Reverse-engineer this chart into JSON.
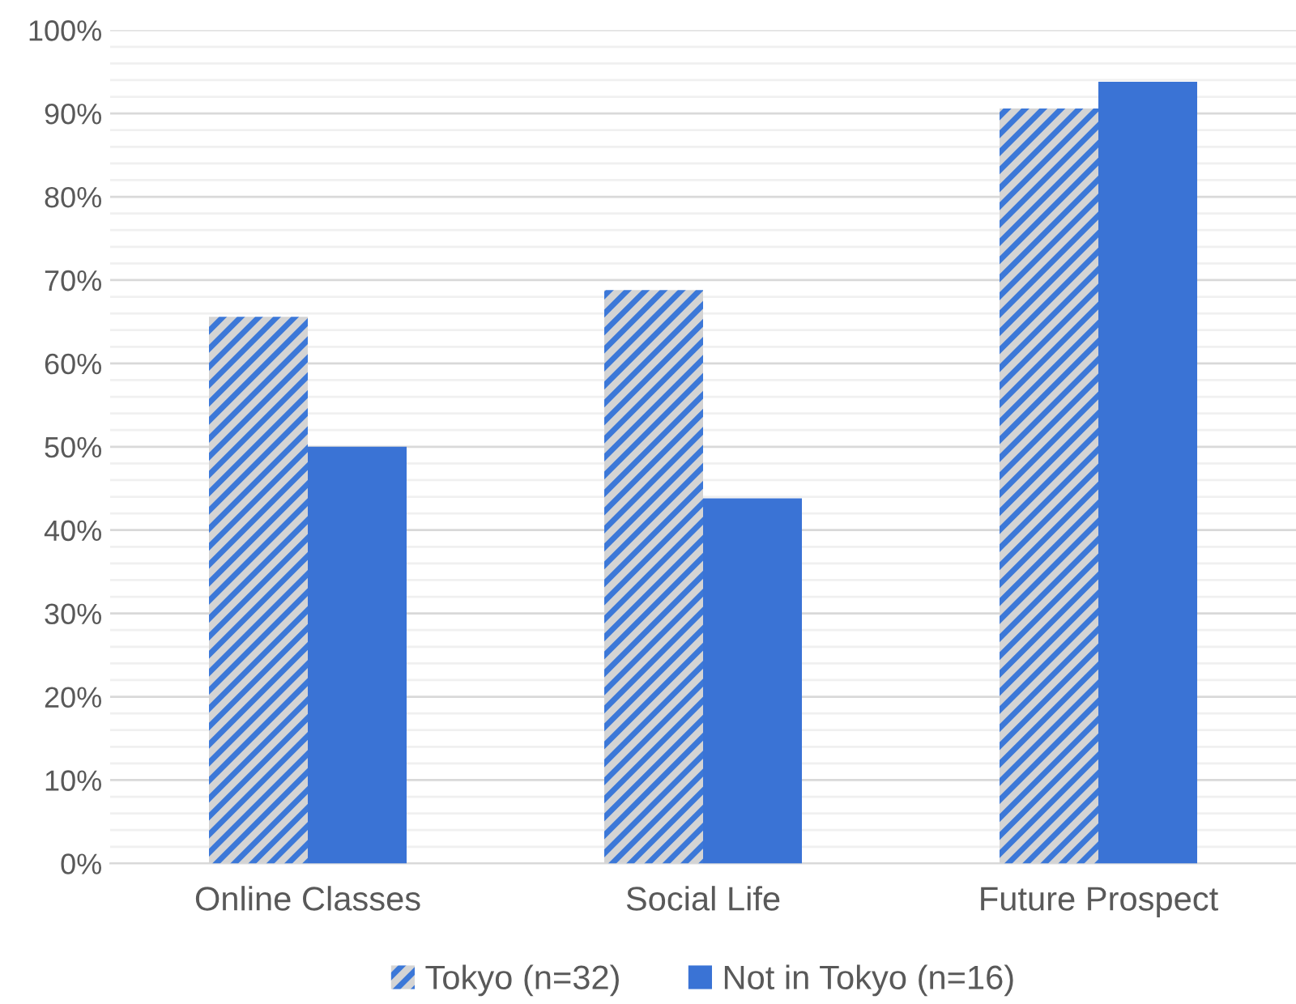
{
  "chart_data": {
    "type": "bar",
    "categories": [
      "Online Classes",
      "Social Life",
      "Future Prospect"
    ],
    "series": [
      {
        "name": "Tokyo (n=32)",
        "color": "#3c78d8",
        "values": [
          65.6,
          68.8,
          90.6
        ]
      },
      {
        "name": "Not in Tokyo (n=16)",
        "color": "#3a73d5",
        "values": [
          50,
          43.8,
          93.8
        ]
      }
    ],
    "ylim": [
      0,
      100
    ],
    "yticks": [
      {
        "value": 0,
        "label": "0%"
      },
      {
        "value": 2,
        "label": null
      },
      {
        "value": 4,
        "label": null
      },
      {
        "value": 6,
        "label": null
      },
      {
        "value": 8,
        "label": null
      },
      {
        "value": 10,
        "label": "10%"
      },
      {
        "value": 12,
        "label": null
      },
      {
        "value": 14,
        "label": null
      },
      {
        "value": 16,
        "label": null
      },
      {
        "value": 18,
        "label": null
      },
      {
        "value": 20,
        "label": "20%"
      },
      {
        "value": 22,
        "label": null
      },
      {
        "value": 24,
        "label": null
      },
      {
        "value": 26,
        "label": null
      },
      {
        "value": 28,
        "label": null
      },
      {
        "value": 30,
        "label": "30%"
      },
      {
        "value": 32,
        "label": null
      },
      {
        "value": 34,
        "label": null
      },
      {
        "value": 36,
        "label": null
      },
      {
        "value": 38,
        "label": null
      },
      {
        "value": 40,
        "label": "40%"
      },
      {
        "value": 42,
        "label": null
      },
      {
        "value": 44,
        "label": null
      },
      {
        "value": 46,
        "label": null
      },
      {
        "value": 48,
        "label": null
      },
      {
        "value": 50,
        "label": "50%"
      },
      {
        "value": 52,
        "label": null
      },
      {
        "value": 54,
        "label": null
      },
      {
        "value": 56,
        "label": null
      },
      {
        "value": 58,
        "label": null
      },
      {
        "value": 60,
        "label": "60%"
      },
      {
        "value": 62,
        "label": null
      },
      {
        "value": 64,
        "label": null
      },
      {
        "value": 66,
        "label": null
      },
      {
        "value": 68,
        "label": null
      },
      {
        "value": 70,
        "label": "70%"
      },
      {
        "value": 72,
        "label": null
      },
      {
        "value": 74,
        "label": null
      },
      {
        "value": 76,
        "label": null
      },
      {
        "value": 78,
        "label": null
      },
      {
        "value": 80,
        "label": "80%"
      },
      {
        "value": 82,
        "label": null
      },
      {
        "value": 84,
        "label": null
      },
      {
        "value": 86,
        "label": null
      },
      {
        "value": 88,
        "label": null
      },
      {
        "value": 90,
        "label": "90%"
      },
      {
        "value": 92,
        "label": null
      },
      {
        "value": 94,
        "label": null
      },
      {
        "value": 96,
        "label": null
      },
      {
        "value": 98,
        "label": null
      },
      {
        "value": 100,
        "label": "100%"
      }
    ],
    "grid": "y",
    "legend": "bottom"
  }
}
